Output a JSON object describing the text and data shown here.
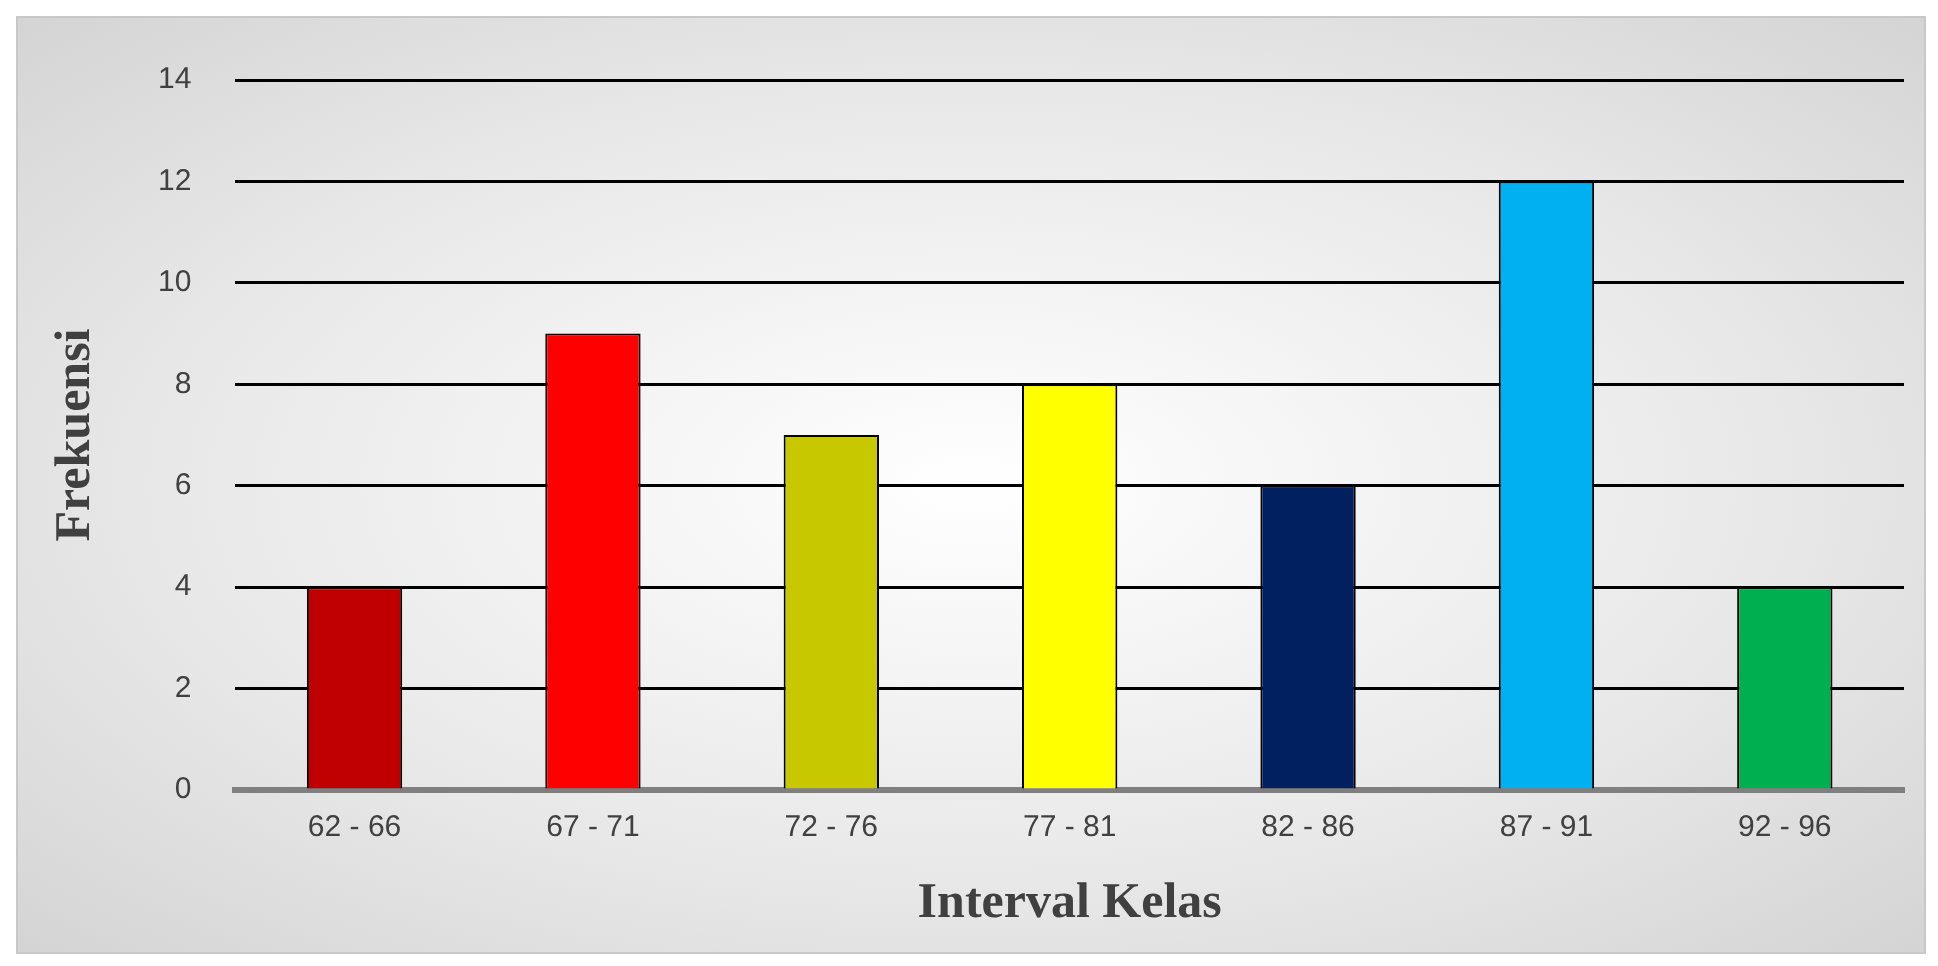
{
  "chart_data": {
    "type": "bar",
    "xlabel": "Interval Kelas",
    "ylabel": "Frekuensi",
    "categories": [
      "62 - 66",
      "67 - 71",
      "72 - 76",
      "77 - 81",
      "82 - 86",
      "87 - 91",
      "92 - 96"
    ],
    "values": [
      4,
      9,
      7,
      8,
      6,
      12,
      4
    ],
    "colors": [
      "#c00000",
      "#ff0000",
      "#c8c800",
      "#ffff00",
      "#002060",
      "#00b0f0",
      "#00b050"
    ],
    "ylim": [
      0,
      14
    ],
    "yticks": [
      0,
      2,
      4,
      6,
      8,
      10,
      12,
      14
    ],
    "grid": "y",
    "legend": false
  }
}
